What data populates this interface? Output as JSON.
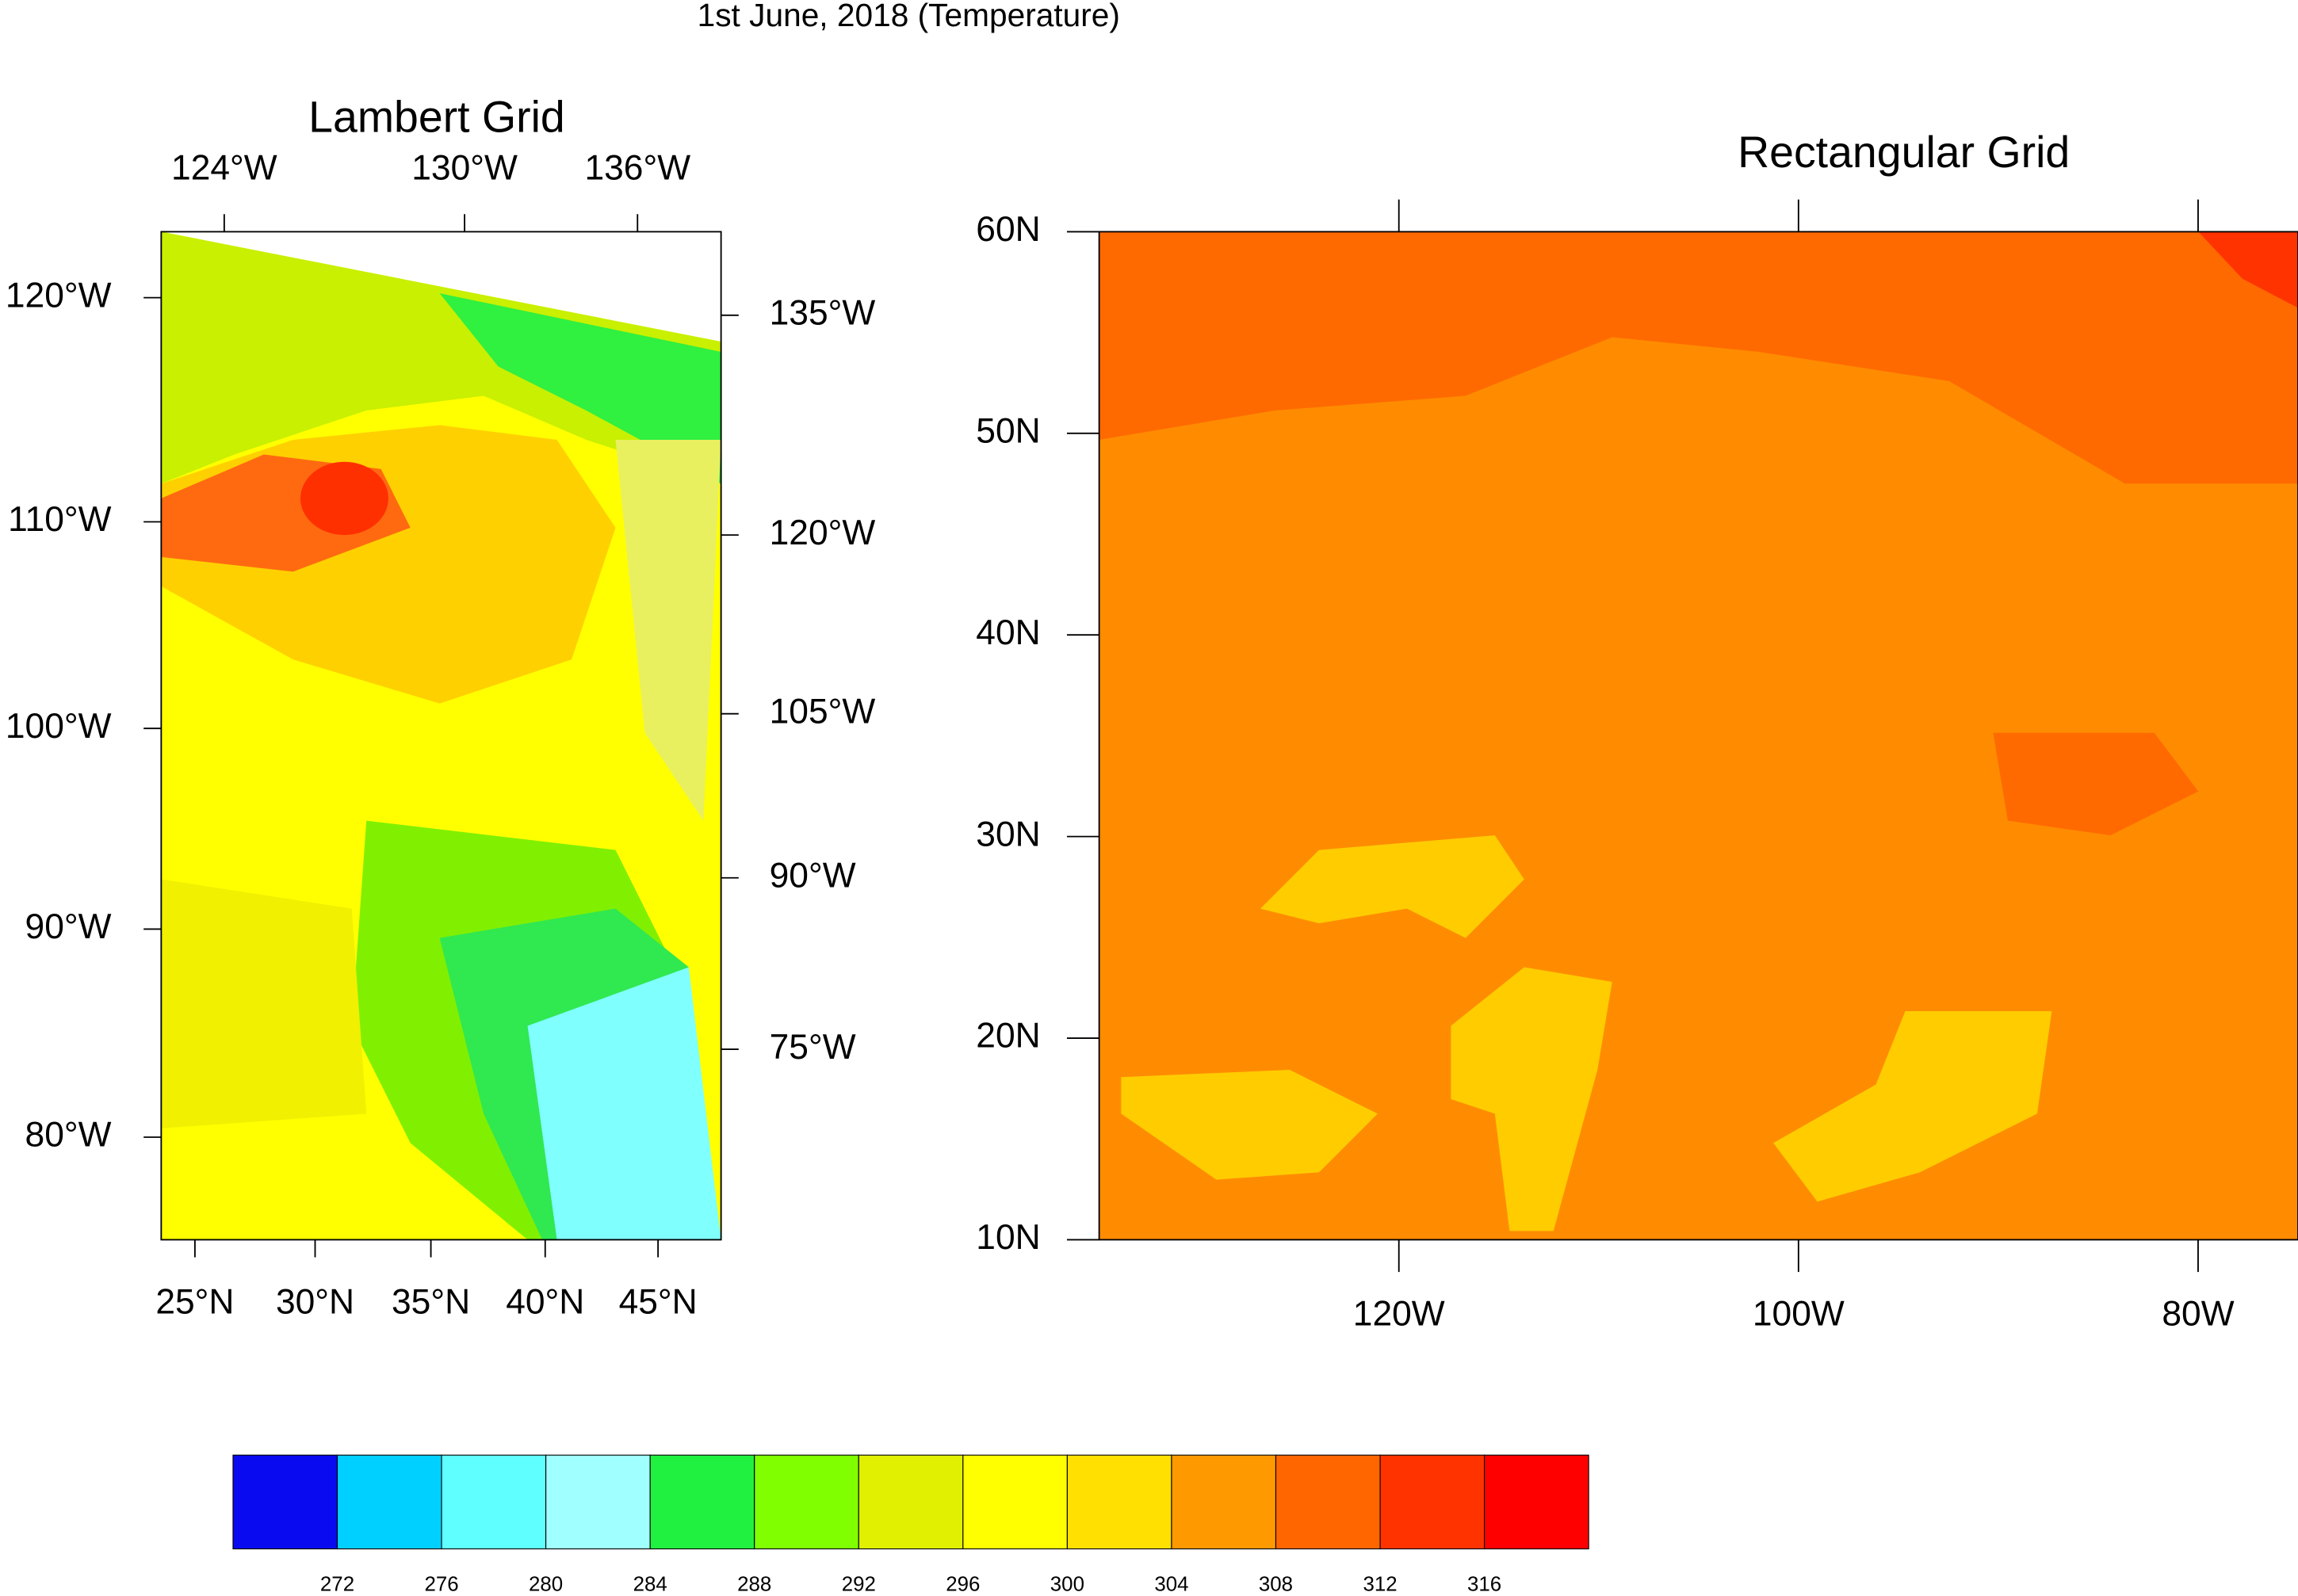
{
  "title": "1st June, 2018 (Temperature)",
  "lambert": {
    "title": "Lambert Grid",
    "top_labels": [
      "124°W",
      "130°W",
      "136°W"
    ],
    "right_labels": [
      "135°W",
      "120°W",
      "105°W",
      "90°W",
      "75°W"
    ],
    "left_labels": [
      "120°W",
      "110°W",
      "100°W",
      "90°W",
      "80°W"
    ],
    "bottom_labels": [
      "25°N",
      "30°N",
      "35°N",
      "40°N",
      "45°N"
    ]
  },
  "chart_data": {
    "type": "map",
    "title": "Rectangular Grid",
    "xlim": [
      -135,
      -75
    ],
    "ylim": [
      10,
      60
    ],
    "xticks": [
      {
        "value": -120,
        "label": "120W"
      },
      {
        "value": -100,
        "label": "100W"
      },
      {
        "value": -80,
        "label": "80W"
      }
    ],
    "yticks": [
      {
        "value": 10,
        "label": "10N"
      },
      {
        "value": 20,
        "label": "20N"
      },
      {
        "value": 30,
        "label": "30N"
      },
      {
        "value": 40,
        "label": "40N"
      },
      {
        "value": 50,
        "label": "50N"
      },
      {
        "value": 60,
        "label": "60N"
      }
    ]
  },
  "colorbar": {
    "levels": [
      272,
      276,
      280,
      284,
      288,
      292,
      296,
      300,
      304,
      308,
      312,
      316
    ],
    "colors": [
      "#0a0af0",
      "#00d0ff",
      "#60ffff",
      "#a0ffff",
      "#20f040",
      "#80ff00",
      "#e0f000",
      "#ffff00",
      "#ffe000",
      "#ff9900",
      "#ff6600",
      "#ff3300",
      "#ff0000"
    ]
  }
}
